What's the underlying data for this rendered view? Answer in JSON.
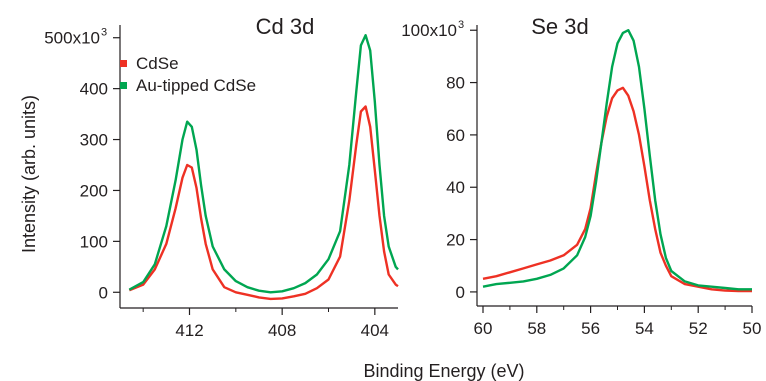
{
  "chart_data": [
    {
      "type": "line",
      "title": "Cd 3d",
      "ylabel": "Intensity (arb. units)",
      "xlabel": "Binding Energy (eV)",
      "x_reversed": true,
      "xlim": [
        415,
        403
      ],
      "ylim": [
        -25,
        525
      ],
      "grid": false,
      "legend_position": "top-left",
      "x_ticks": [
        "412",
        "408",
        "404"
      ],
      "x_tick_values": [
        412,
        408,
        404
      ],
      "y_ticks": [
        "0",
        "100",
        "200",
        "300",
        "400",
        "500x10"
      ],
      "y_tick_values": [
        0,
        100,
        200,
        300,
        400,
        500
      ],
      "y_tick_exponent": "3",
      "series": [
        {
          "name": "CdSe",
          "color": "#ee3124",
          "x": [
            414.6,
            414,
            413.5,
            413,
            412.6,
            412.3,
            412.1,
            411.9,
            411.7,
            411.5,
            411.3,
            411,
            410.5,
            410,
            409.5,
            409,
            408.5,
            408,
            407.5,
            407,
            406.5,
            406,
            405.5,
            405.1,
            404.8,
            404.6,
            404.4,
            404.2,
            404,
            403.8,
            403.6,
            403.4,
            403.1,
            403
          ],
          "values": [
            4,
            15,
            45,
            95,
            165,
            225,
            250,
            245,
            205,
            145,
            95,
            45,
            10,
            0,
            -5,
            -10,
            -13,
            -12,
            -8,
            -3,
            8,
            25,
            70,
            180,
            290,
            355,
            365,
            325,
            240,
            150,
            80,
            35,
            15,
            12
          ]
        },
        {
          "name": "Au-tipped CdSe",
          "color": "#00a651",
          "x": [
            414.6,
            414,
            413.5,
            413,
            412.6,
            412.3,
            412.1,
            411.9,
            411.7,
            411.5,
            411.3,
            411,
            410.5,
            410,
            409.5,
            409,
            408.5,
            408,
            407.5,
            407,
            406.5,
            406,
            405.5,
            405.1,
            404.8,
            404.6,
            404.4,
            404.2,
            404,
            403.8,
            403.6,
            403.4,
            403.1,
            403
          ],
          "values": [
            5,
            20,
            55,
            130,
            220,
            300,
            335,
            325,
            280,
            210,
            150,
            90,
            45,
            22,
            10,
            3,
            0,
            2,
            8,
            18,
            35,
            65,
            120,
            250,
            395,
            485,
            505,
            475,
            375,
            250,
            150,
            90,
            50,
            45
          ]
        }
      ]
    },
    {
      "type": "line",
      "title": "Se 3d",
      "xlabel": "Binding Energy (eV)",
      "x_reversed": true,
      "xlim": [
        60,
        50
      ],
      "ylim": [
        -5,
        102
      ],
      "grid": false,
      "x_ticks": [
        "60",
        "58",
        "56",
        "54",
        "52",
        "50"
      ],
      "x_tick_values": [
        60,
        58,
        56,
        54,
        52,
        50
      ],
      "y_ticks": [
        "0",
        "20",
        "40",
        "60",
        "80",
        "100x10"
      ],
      "y_tick_values": [
        0,
        20,
        40,
        60,
        80,
        100
      ],
      "y_tick_exponent": "3",
      "series": [
        {
          "name": "CdSe",
          "color": "#ee3124",
          "x": [
            60,
            59.5,
            59,
            58.5,
            58,
            57.5,
            57,
            56.5,
            56.2,
            56,
            55.8,
            55.6,
            55.4,
            55.2,
            55,
            54.8,
            54.6,
            54.4,
            54.2,
            54,
            53.8,
            53.6,
            53.4,
            53.2,
            53,
            52.5,
            52,
            51.5,
            51,
            50.5,
            50
          ],
          "values": [
            5,
            6,
            7.5,
            9,
            10.5,
            12,
            14,
            18,
            24,
            32,
            45,
            57,
            67,
            74,
            77,
            78,
            75,
            69,
            60,
            48,
            35,
            24,
            15,
            10,
            6,
            3,
            2,
            1,
            0.5,
            0.3,
            0.3
          ]
        },
        {
          "name": "Au-tipped CdSe",
          "color": "#00a651",
          "x": [
            60,
            59.5,
            59,
            58.5,
            58,
            57.5,
            57,
            56.5,
            56.2,
            56,
            55.8,
            55.6,
            55.4,
            55.2,
            55,
            54.8,
            54.6,
            54.4,
            54.2,
            54,
            53.8,
            53.6,
            53.4,
            53.2,
            53,
            52.5,
            52,
            51.5,
            51,
            50.5,
            50
          ],
          "values": [
            2,
            3,
            3.5,
            4,
            5,
            6.5,
            9,
            14,
            21,
            29,
            42,
            57,
            72,
            86,
            95,
            99,
            100,
            96,
            86,
            70,
            52,
            35,
            22,
            13,
            8,
            4,
            2.5,
            2,
            1.5,
            1,
            1
          ]
        }
      ]
    }
  ]
}
